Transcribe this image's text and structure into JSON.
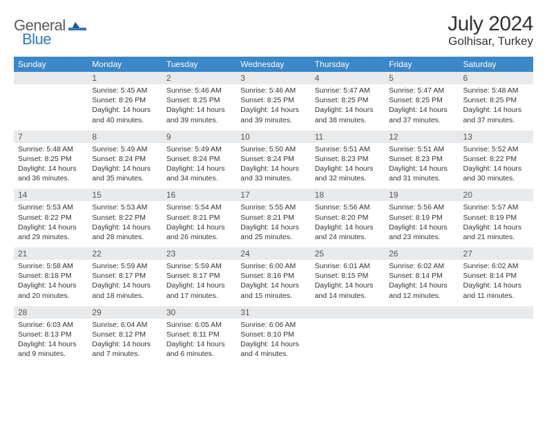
{
  "brand": {
    "part1": "General",
    "part2": "Blue"
  },
  "title": "July 2024",
  "location": "Golhisar, Turkey",
  "colors": {
    "header_bg": "#3b87c8",
    "header_text": "#ffffff",
    "daynum_bg": "#e9eaec",
    "border": "#3b87c8",
    "text": "#333333",
    "brand_gray": "#5a5a5a",
    "brand_blue": "#2f79bd"
  },
  "day_names": [
    "Sunday",
    "Monday",
    "Tuesday",
    "Wednesday",
    "Thursday",
    "Friday",
    "Saturday"
  ],
  "weeks": [
    [
      {
        "n": "",
        "sr": "",
        "ss": "",
        "dl": ""
      },
      {
        "n": "1",
        "sr": "Sunrise: 5:45 AM",
        "ss": "Sunset: 8:26 PM",
        "dl": "Daylight: 14 hours and 40 minutes."
      },
      {
        "n": "2",
        "sr": "Sunrise: 5:46 AM",
        "ss": "Sunset: 8:25 PM",
        "dl": "Daylight: 14 hours and 39 minutes."
      },
      {
        "n": "3",
        "sr": "Sunrise: 5:46 AM",
        "ss": "Sunset: 8:25 PM",
        "dl": "Daylight: 14 hours and 39 minutes."
      },
      {
        "n": "4",
        "sr": "Sunrise: 5:47 AM",
        "ss": "Sunset: 8:25 PM",
        "dl": "Daylight: 14 hours and 38 minutes."
      },
      {
        "n": "5",
        "sr": "Sunrise: 5:47 AM",
        "ss": "Sunset: 8:25 PM",
        "dl": "Daylight: 14 hours and 37 minutes."
      },
      {
        "n": "6",
        "sr": "Sunrise: 5:48 AM",
        "ss": "Sunset: 8:25 PM",
        "dl": "Daylight: 14 hours and 37 minutes."
      }
    ],
    [
      {
        "n": "7",
        "sr": "Sunrise: 5:48 AM",
        "ss": "Sunset: 8:25 PM",
        "dl": "Daylight: 14 hours and 36 minutes."
      },
      {
        "n": "8",
        "sr": "Sunrise: 5:49 AM",
        "ss": "Sunset: 8:24 PM",
        "dl": "Daylight: 14 hours and 35 minutes."
      },
      {
        "n": "9",
        "sr": "Sunrise: 5:49 AM",
        "ss": "Sunset: 8:24 PM",
        "dl": "Daylight: 14 hours and 34 minutes."
      },
      {
        "n": "10",
        "sr": "Sunrise: 5:50 AM",
        "ss": "Sunset: 8:24 PM",
        "dl": "Daylight: 14 hours and 33 minutes."
      },
      {
        "n": "11",
        "sr": "Sunrise: 5:51 AM",
        "ss": "Sunset: 8:23 PM",
        "dl": "Daylight: 14 hours and 32 minutes."
      },
      {
        "n": "12",
        "sr": "Sunrise: 5:51 AM",
        "ss": "Sunset: 8:23 PM",
        "dl": "Daylight: 14 hours and 31 minutes."
      },
      {
        "n": "13",
        "sr": "Sunrise: 5:52 AM",
        "ss": "Sunset: 8:22 PM",
        "dl": "Daylight: 14 hours and 30 minutes."
      }
    ],
    [
      {
        "n": "14",
        "sr": "Sunrise: 5:53 AM",
        "ss": "Sunset: 8:22 PM",
        "dl": "Daylight: 14 hours and 29 minutes."
      },
      {
        "n": "15",
        "sr": "Sunrise: 5:53 AM",
        "ss": "Sunset: 8:22 PM",
        "dl": "Daylight: 14 hours and 28 minutes."
      },
      {
        "n": "16",
        "sr": "Sunrise: 5:54 AM",
        "ss": "Sunset: 8:21 PM",
        "dl": "Daylight: 14 hours and 26 minutes."
      },
      {
        "n": "17",
        "sr": "Sunrise: 5:55 AM",
        "ss": "Sunset: 8:21 PM",
        "dl": "Daylight: 14 hours and 25 minutes."
      },
      {
        "n": "18",
        "sr": "Sunrise: 5:56 AM",
        "ss": "Sunset: 8:20 PM",
        "dl": "Daylight: 14 hours and 24 minutes."
      },
      {
        "n": "19",
        "sr": "Sunrise: 5:56 AM",
        "ss": "Sunset: 8:19 PM",
        "dl": "Daylight: 14 hours and 23 minutes."
      },
      {
        "n": "20",
        "sr": "Sunrise: 5:57 AM",
        "ss": "Sunset: 8:19 PM",
        "dl": "Daylight: 14 hours and 21 minutes."
      }
    ],
    [
      {
        "n": "21",
        "sr": "Sunrise: 5:58 AM",
        "ss": "Sunset: 8:18 PM",
        "dl": "Daylight: 14 hours and 20 minutes."
      },
      {
        "n": "22",
        "sr": "Sunrise: 5:59 AM",
        "ss": "Sunset: 8:17 PM",
        "dl": "Daylight: 14 hours and 18 minutes."
      },
      {
        "n": "23",
        "sr": "Sunrise: 5:59 AM",
        "ss": "Sunset: 8:17 PM",
        "dl": "Daylight: 14 hours and 17 minutes."
      },
      {
        "n": "24",
        "sr": "Sunrise: 6:00 AM",
        "ss": "Sunset: 8:16 PM",
        "dl": "Daylight: 14 hours and 15 minutes."
      },
      {
        "n": "25",
        "sr": "Sunrise: 6:01 AM",
        "ss": "Sunset: 8:15 PM",
        "dl": "Daylight: 14 hours and 14 minutes."
      },
      {
        "n": "26",
        "sr": "Sunrise: 6:02 AM",
        "ss": "Sunset: 8:14 PM",
        "dl": "Daylight: 14 hours and 12 minutes."
      },
      {
        "n": "27",
        "sr": "Sunrise: 6:02 AM",
        "ss": "Sunset: 8:14 PM",
        "dl": "Daylight: 14 hours and 11 minutes."
      }
    ],
    [
      {
        "n": "28",
        "sr": "Sunrise: 6:03 AM",
        "ss": "Sunset: 8:13 PM",
        "dl": "Daylight: 14 hours and 9 minutes."
      },
      {
        "n": "29",
        "sr": "Sunrise: 6:04 AM",
        "ss": "Sunset: 8:12 PM",
        "dl": "Daylight: 14 hours and 7 minutes."
      },
      {
        "n": "30",
        "sr": "Sunrise: 6:05 AM",
        "ss": "Sunset: 8:11 PM",
        "dl": "Daylight: 14 hours and 6 minutes."
      },
      {
        "n": "31",
        "sr": "Sunrise: 6:06 AM",
        "ss": "Sunset: 8:10 PM",
        "dl": "Daylight: 14 hours and 4 minutes."
      },
      {
        "n": "",
        "sr": "",
        "ss": "",
        "dl": ""
      },
      {
        "n": "",
        "sr": "",
        "ss": "",
        "dl": ""
      },
      {
        "n": "",
        "sr": "",
        "ss": "",
        "dl": ""
      }
    ]
  ]
}
